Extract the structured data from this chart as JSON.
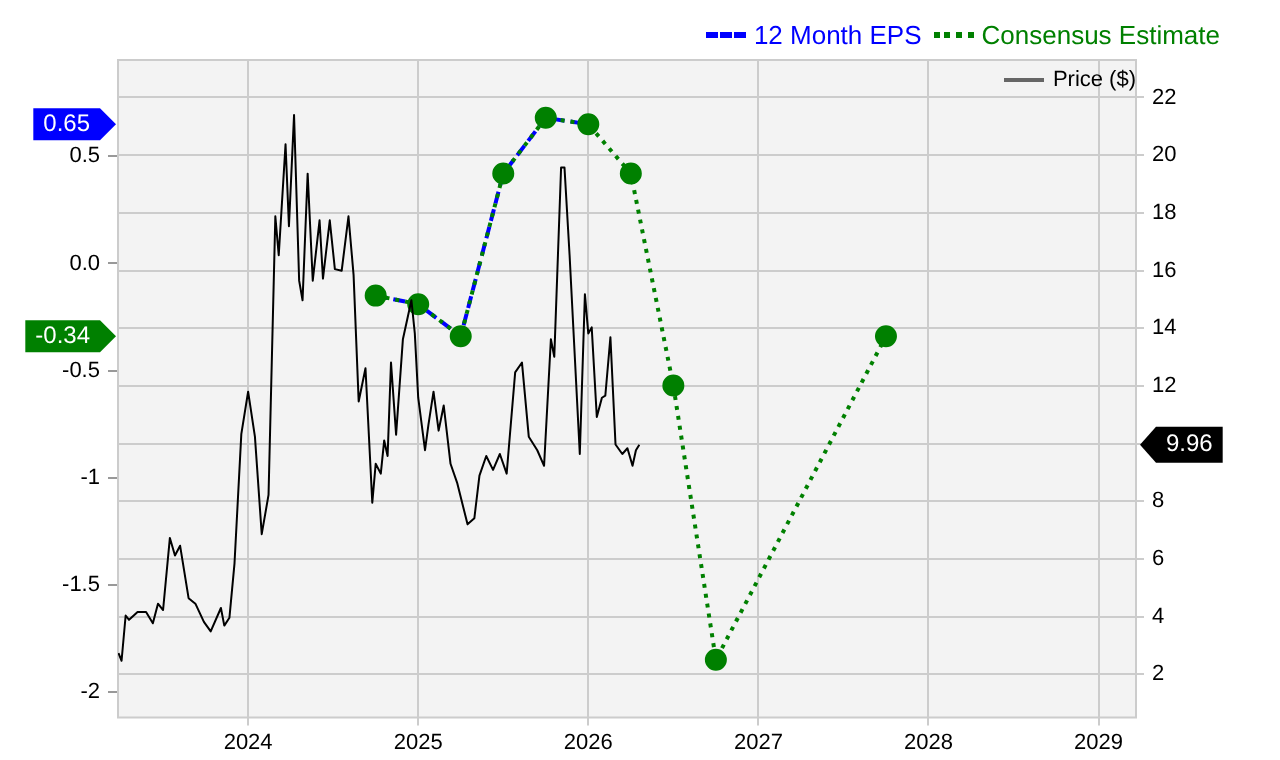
{
  "chart_data": {
    "type": "line",
    "xlim": [
      2023.235,
      2029.22
    ],
    "xticks": [
      2024,
      2025,
      2026,
      2027,
      2028,
      2029
    ],
    "ylim": [
      -2.12,
      0.95
    ],
    "yticks": [
      {
        "value": 0.5,
        "label": "0.5"
      },
      {
        "value": 0,
        "label": "0.0"
      },
      {
        "value": -0.5,
        "label": "-0.5"
      },
      {
        "value": -1,
        "label": "-1"
      },
      {
        "value": -1.5,
        "label": "-1.5"
      },
      {
        "value": -2,
        "label": "-2"
      }
    ],
    "y2lim": [
      0.5,
      23.3
    ],
    "y2ticks": [
      2,
      4,
      6,
      8,
      {
        "value": 10,
        "label": null
      },
      12,
      14,
      16,
      18,
      20,
      22
    ],
    "grid": true,
    "legend": "top right",
    "series": [
      {
        "name": "Price ($)",
        "color": "#000000",
        "axis": "y2",
        "marker": "none",
        "line_style": "solid",
        "x": [
          2023.238,
          2023.256,
          2023.28,
          2023.3,
          2023.35,
          2023.4,
          2023.44,
          2023.47,
          2023.5,
          2023.54,
          2023.57,
          2023.6,
          2023.65,
          2023.69,
          2023.74,
          2023.78,
          2023.84,
          2023.86,
          2023.89,
          2023.92,
          2023.96,
          2024.0,
          2024.04,
          2024.08,
          2024.12,
          2024.16,
          2024.18,
          2024.22,
          2024.24,
          2024.27,
          2024.3,
          2024.32,
          2024.35,
          2024.38,
          2024.42,
          2024.44,
          2024.48,
          2024.51,
          2024.55,
          2024.59,
          2024.62,
          2024.65,
          2024.69,
          2024.73,
          2024.75,
          2024.78,
          2024.8,
          2024.82,
          2024.84,
          2024.87,
          2024.91,
          2024.96,
          2024.98,
          2025.0,
          2025.04,
          2025.06,
          2025.09,
          2025.12,
          2025.15,
          2025.19,
          2025.23,
          2025.29,
          2025.33,
          2025.36,
          2025.4,
          2025.44,
          2025.48,
          2025.52,
          2025.57,
          2025.61,
          2025.65,
          2025.7,
          2025.74,
          2025.78,
          2025.8,
          2025.84,
          2025.86,
          2025.89,
          2025.95,
          2025.98,
          2026.0,
          2026.02,
          2026.05,
          2026.08,
          2026.1,
          2026.13,
          2026.16,
          2026.2,
          2026.23,
          2026.26,
          2026.28,
          2026.3
        ],
        "values": [
          2.74,
          2.47,
          4.04,
          3.89,
          4.16,
          4.16,
          3.77,
          4.45,
          4.23,
          6.73,
          6.12,
          6.46,
          4.64,
          4.45,
          3.82,
          3.49,
          4.3,
          3.69,
          3.96,
          5.85,
          10.33,
          11.8,
          10.24,
          6.86,
          8.22,
          17.88,
          16.53,
          20.38,
          17.54,
          21.39,
          15.65,
          14.97,
          19.36,
          15.65,
          17.74,
          15.72,
          17.74,
          16.05,
          15.99,
          17.88,
          15.85,
          11.46,
          12.61,
          7.95,
          9.3,
          8.96,
          10.11,
          9.57,
          12.81,
          10.31,
          13.62,
          14.97,
          13.82,
          11.59,
          9.77,
          10.65,
          11.8,
          10.45,
          11.32,
          9.3,
          8.62,
          7.2,
          7.41,
          8.89,
          9.57,
          9.09,
          9.64,
          8.96,
          12.47,
          12.81,
          10.24,
          9.77,
          9.23,
          13.62,
          13.01,
          19.57,
          19.57,
          16.53,
          9.64,
          15.18,
          13.82,
          14.03,
          10.92,
          11.59,
          11.66,
          13.69,
          9.97,
          9.64,
          9.84,
          9.23,
          9.77,
          9.96
        ]
      },
      {
        "name": "Consensus Estimate",
        "color": "#008000",
        "marker": "circle",
        "line_style": "dotted",
        "x": [
          2024.75,
          2025.0,
          2025.25,
          2025.5,
          2025.75,
          2026.0,
          2026.25,
          2026.5,
          2026.75,
          2027.75
        ],
        "values": [
          -0.15,
          -0.19,
          -0.34,
          0.42,
          0.68,
          0.65,
          0.42,
          -0.57,
          -1.85,
          -0.34
        ]
      },
      {
        "name": "12 Month EPS",
        "color": "#0000ff",
        "marker": "none",
        "line_style": "dashed",
        "x": [
          2024.75,
          2025.0,
          2025.25,
          2025.5,
          2025.75,
          2026.0
        ],
        "values": [
          -0.15,
          -0.19,
          -0.34,
          0.42,
          0.68,
          0.65
        ]
      }
    ],
    "annotations": [
      "9.96",
      "-0.34",
      "0.65"
    ]
  }
}
